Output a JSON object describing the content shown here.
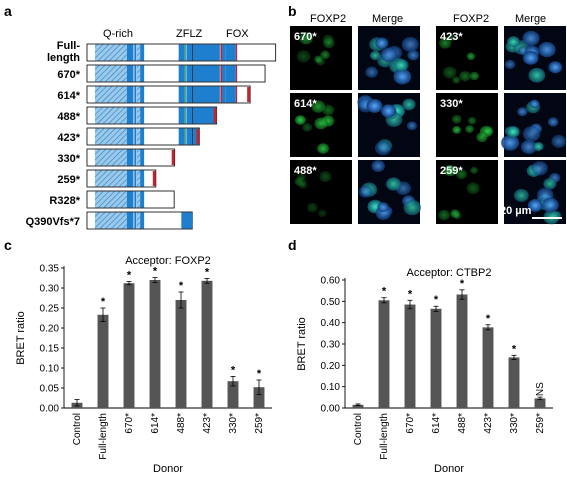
{
  "panels": {
    "a": "a",
    "b": "b",
    "c": "c",
    "d": "d"
  },
  "panel_a": {
    "domain_labels": [
      "Q-rich",
      "ZFLZ",
      "FOX"
    ],
    "constructs": [
      {
        "label": "Full-\nlength",
        "line1": "Full-",
        "line2": "length",
        "end": 710
      },
      {
        "label": "670*",
        "end": 670
      },
      {
        "label": "614*",
        "end": 614
      },
      {
        "label": "488*",
        "end": 488
      },
      {
        "label": "423*",
        "end": 423
      },
      {
        "label": "330*",
        "end": 330
      },
      {
        "label": "259*",
        "end": 259
      },
      {
        "label": "R328*",
        "end": 328
      },
      {
        "label": "Q390Vfs*7",
        "end": 396
      }
    ]
  },
  "panel_b": {
    "col_headers": [
      "FOXP2",
      "Merge",
      "FOXP2",
      "Merge"
    ],
    "tiles": [
      {
        "label": "670*",
        "intensity": 0.55
      },
      {
        "label": "423*",
        "intensity": 0.6
      },
      {
        "label": "614*",
        "intensity": 0.8
      },
      {
        "label": "330*",
        "intensity": 0.85
      },
      {
        "label": "488*",
        "intensity": 0.35
      },
      {
        "label": "259*",
        "intensity": 0.75
      }
    ],
    "scale_bar": "20 µm"
  },
  "colors": {
    "blue": "#1f7fcf",
    "hatch": "#9cc9e8",
    "green": "#2aa84a",
    "red": "#c0262d",
    "bar_gray": "#555555"
  },
  "chart_data": [
    {
      "type": "bar",
      "title": "Acceptor: FOXP2",
      "xlabel": "Donor",
      "ylabel": "BRET ratio",
      "ylim": [
        0,
        0.35
      ],
      "yticks": [
        "0.00",
        "0.05",
        "0.10",
        "0.15",
        "0.20",
        "0.25",
        "0.30",
        "0.35"
      ],
      "categories": [
        "Control",
        "Full-length",
        "670*",
        "614*",
        "488*",
        "423*",
        "330*",
        "259*"
      ],
      "values": [
        0.013,
        0.233,
        0.312,
        0.32,
        0.27,
        0.318,
        0.067,
        0.052
      ],
      "errors": [
        0.008,
        0.017,
        0.004,
        0.006,
        0.02,
        0.006,
        0.012,
        0.018
      ],
      "annotations": [
        "",
        "*",
        "*",
        "*",
        "*",
        "*",
        "*",
        "*"
      ]
    },
    {
      "type": "bar",
      "title": "Acceptor: CTBP2",
      "xlabel": "Donor",
      "ylabel": "BRET ratio",
      "ylim": [
        0,
        0.6
      ],
      "yticks": [
        "0.00",
        "0.10",
        "0.20",
        "0.30",
        "0.40",
        "0.50",
        "0.60"
      ],
      "categories": [
        "Control",
        "Full-length",
        "670*",
        "614*",
        "488*",
        "423*",
        "330*",
        "259*"
      ],
      "values": [
        0.015,
        0.505,
        0.485,
        0.465,
        0.532,
        0.378,
        0.237,
        0.045
      ],
      "errors": [
        0.004,
        0.012,
        0.02,
        0.012,
        0.022,
        0.012,
        0.01,
        0.006
      ],
      "annotations": [
        "",
        "*",
        "*",
        "*",
        "*",
        "*",
        "*",
        "NS"
      ]
    }
  ]
}
